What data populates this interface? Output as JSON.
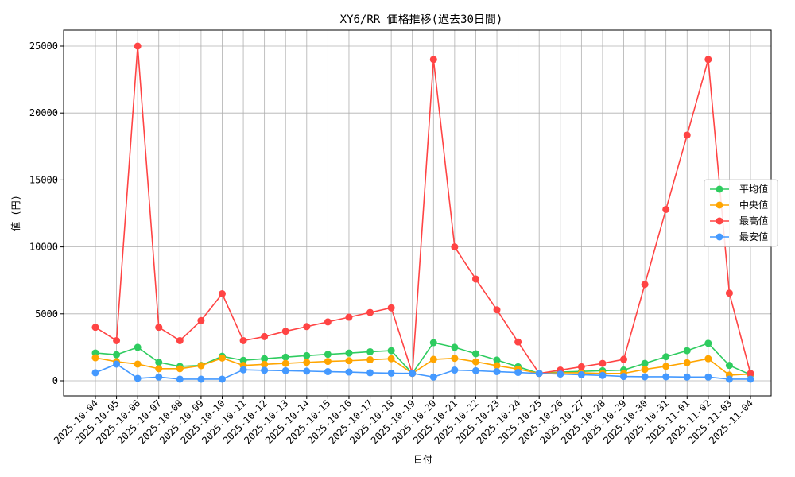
{
  "chart_data": {
    "type": "line",
    "title": "XY6/RR 価格推移(過去30日間)",
    "xlabel": "日付",
    "ylabel": "値 (円)",
    "ylim": [
      -1100,
      26300
    ],
    "yticks": [
      0,
      5000,
      10000,
      15000,
      20000,
      25000
    ],
    "grid": true,
    "legend_position": "center-right",
    "x": [
      "2025-10-04",
      "2025-10-05",
      "2025-10-06",
      "2025-10-07",
      "2025-10-08",
      "2025-10-09",
      "2025-10-10",
      "2025-10-11",
      "2025-10-12",
      "2025-10-13",
      "2025-10-14",
      "2025-10-15",
      "2025-10-16",
      "2025-10-17",
      "2025-10-18",
      "2025-10-19",
      "2025-10-20",
      "2025-10-21",
      "2025-10-22",
      "2025-10-23",
      "2025-10-24",
      "2025-10-25",
      "2025-10-26",
      "2025-10-27",
      "2025-10-28",
      "2025-10-29",
      "2025-10-30",
      "2025-10-31",
      "2025-11-01",
      "2025-11-02",
      "2025-11-03",
      "2025-11-04"
    ],
    "series": [
      {
        "name": "平均値",
        "color": "#2ecc5f",
        "values": [
          2080,
          1950,
          2500,
          1380,
          1070,
          1150,
          1830,
          1530,
          1650,
          1770,
          1880,
          1980,
          2070,
          2170,
          2250,
          550,
          2850,
          2500,
          2020,
          1550,
          1050,
          550,
          650,
          700,
          750,
          800,
          1300,
          1800,
          2250,
          2800,
          1150,
          450
        ]
      },
      {
        "name": "中央値",
        "color": "#ffa500",
        "values": [
          1720,
          1430,
          1250,
          900,
          900,
          1130,
          1700,
          1150,
          1230,
          1300,
          1380,
          1450,
          1500,
          1570,
          1650,
          550,
          1600,
          1680,
          1420,
          1130,
          870,
          550,
          600,
          600,
          550,
          550,
          850,
          1080,
          1350,
          1650,
          420,
          500
        ]
      },
      {
        "name": "最高値",
        "color": "#ff4444",
        "values": [
          4000,
          3000,
          25000,
          4000,
          3000,
          4500,
          6500,
          3000,
          3300,
          3700,
          4050,
          4400,
          4750,
          5100,
          5450,
          550,
          24000,
          10000,
          7600,
          5300,
          2900,
          550,
          800,
          1050,
          1300,
          1600,
          7200,
          12800,
          18350,
          24000,
          6550,
          550
        ]
      },
      {
        "name": "最安値",
        "color": "#4499ff",
        "values": [
          600,
          1250,
          180,
          280,
          120,
          120,
          120,
          820,
          780,
          750,
          720,
          680,
          650,
          600,
          570,
          550,
          280,
          800,
          750,
          680,
          620,
          550,
          500,
          450,
          400,
          320,
          300,
          300,
          280,
          280,
          120,
          120
        ]
      }
    ]
  }
}
